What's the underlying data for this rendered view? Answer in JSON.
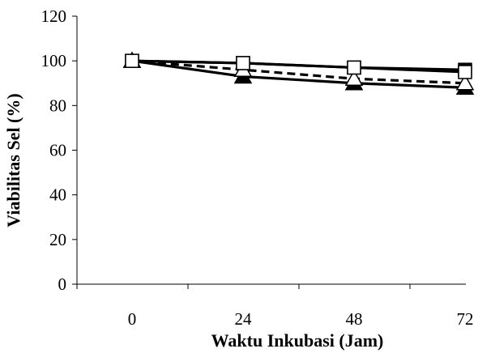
{
  "chart_data": {
    "type": "line",
    "xlabel": "Waktu Inkubasi (Jam)",
    "ylabel": "Viabilitas Sel (%)",
    "x": [
      0,
      24,
      48,
      72
    ],
    "ylim": [
      0,
      120
    ],
    "yticks": [
      0,
      20,
      40,
      60,
      80,
      100,
      120
    ],
    "grid": false,
    "legend": "none",
    "series": [
      {
        "marker": "filled-square",
        "line": "solid",
        "values": [
          100,
          99,
          97,
          96
        ]
      },
      {
        "marker": "filled-triangle",
        "line": "solid",
        "values": [
          100,
          93,
          90,
          88
        ]
      },
      {
        "marker": "open-square",
        "line": "solid",
        "values": [
          100,
          99,
          97,
          95
        ]
      },
      {
        "marker": "open-triangle",
        "line": "dashed",
        "values": [
          100,
          96,
          92,
          90
        ]
      }
    ],
    "colors": {
      "line": "#000000",
      "open_marker_fill": "#ffffff"
    }
  }
}
